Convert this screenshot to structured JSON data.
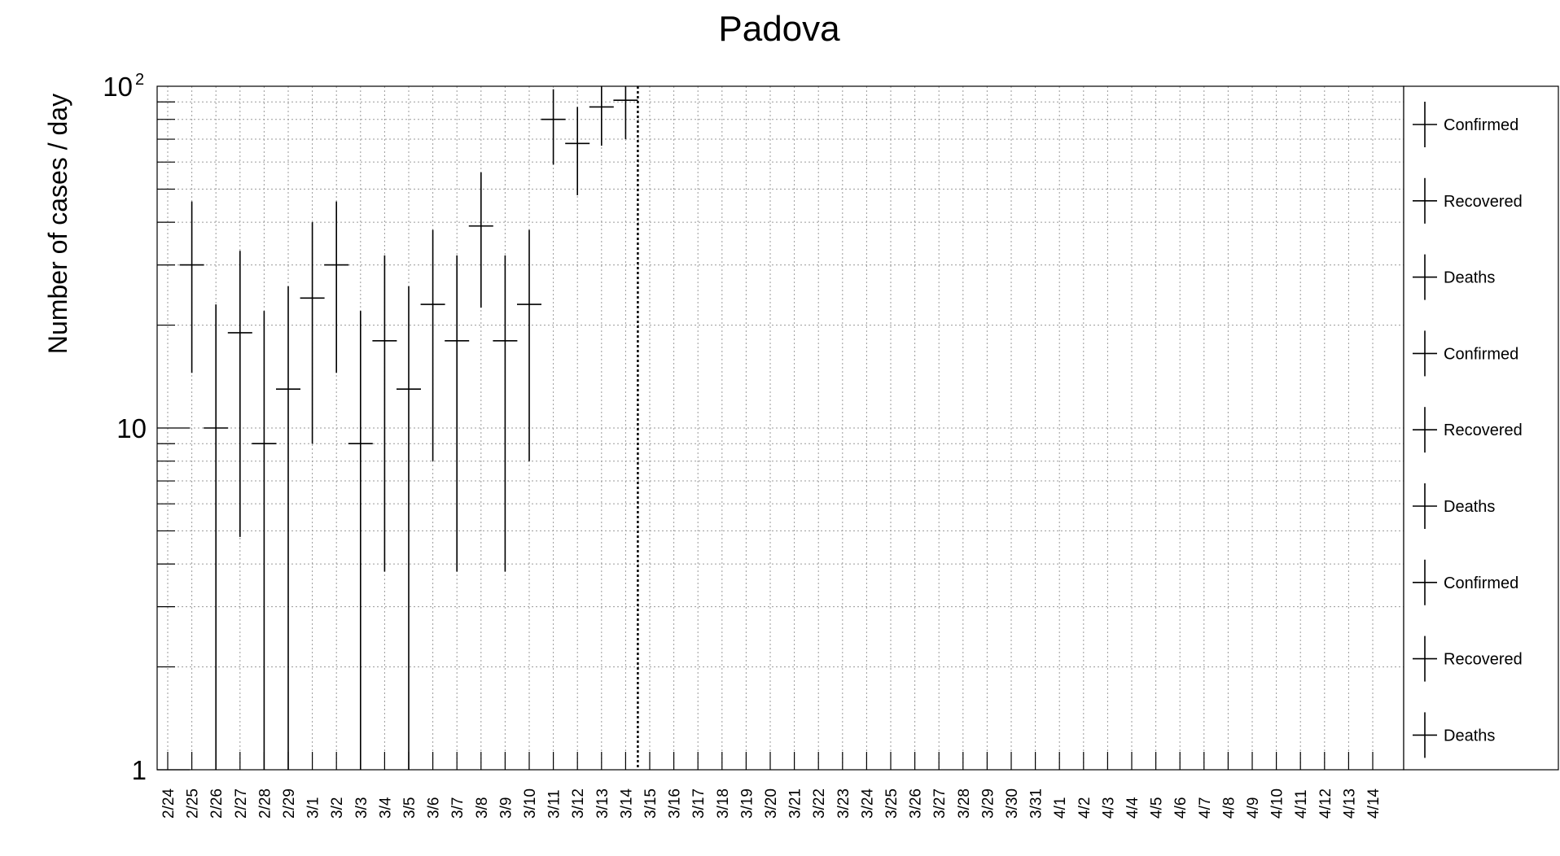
{
  "chart_data": {
    "type": "scatter",
    "title": "Padova",
    "xlabel": "",
    "ylabel": "Number of cases / day",
    "yscale": "log",
    "ylim": [
      1,
      100
    ],
    "ytick_labels": [
      {
        "value": 1,
        "label": "1",
        "sup": ""
      },
      {
        "value": 10,
        "label": "10",
        "sup": ""
      },
      {
        "value": 100,
        "label": "10",
        "sup": "2"
      }
    ],
    "categories": [
      "2/24",
      "2/25",
      "2/26",
      "2/27",
      "2/28",
      "2/29",
      "3/1",
      "3/2",
      "3/3",
      "3/4",
      "3/5",
      "3/6",
      "3/7",
      "3/8",
      "3/9",
      "3/10",
      "3/11",
      "3/12",
      "3/13",
      "3/14",
      "3/15",
      "3/16",
      "3/17",
      "3/18",
      "3/19",
      "3/20",
      "3/21",
      "3/22",
      "3/23",
      "3/24",
      "3/25",
      "3/26",
      "3/27",
      "3/28",
      "3/29",
      "3/30",
      "3/31",
      "4/1",
      "4/2",
      "4/3",
      "4/4",
      "4/5",
      "4/6",
      "4/7",
      "4/8",
      "4/9",
      "4/10",
      "4/11",
      "4/12",
      "4/13",
      "4/14"
    ],
    "grid": true,
    "vertical_marker": {
      "after_category": "3/14",
      "style": "dotted"
    },
    "series": [
      {
        "name": "Confirmed",
        "points": [
          {
            "x": "2/25",
            "y": 30,
            "ylow": 14.5,
            "yhigh": 46
          },
          {
            "x": "2/26",
            "y": 10,
            "ylow": 1,
            "yhigh": 23
          },
          {
            "x": "2/27",
            "y": 19,
            "ylow": 4.8,
            "yhigh": 33
          },
          {
            "x": "2/28",
            "y": 9,
            "ylow": 1,
            "yhigh": 22
          },
          {
            "x": "2/29",
            "y": 13,
            "ylow": 1,
            "yhigh": 26
          },
          {
            "x": "3/1",
            "y": 24,
            "ylow": 9,
            "yhigh": 40
          },
          {
            "x": "3/2",
            "y": 30,
            "ylow": 14.5,
            "yhigh": 46
          },
          {
            "x": "3/3",
            "y": 9,
            "ylow": 1,
            "yhigh": 22
          },
          {
            "x": "3/4",
            "y": 18,
            "ylow": 3.8,
            "yhigh": 32
          },
          {
            "x": "3/5",
            "y": 13,
            "ylow": 1,
            "yhigh": 26
          },
          {
            "x": "3/6",
            "y": 23,
            "ylow": 8,
            "yhigh": 38
          },
          {
            "x": "3/7",
            "y": 18,
            "ylow": 3.8,
            "yhigh": 32
          },
          {
            "x": "3/8",
            "y": 39,
            "ylow": 22.5,
            "yhigh": 56
          },
          {
            "x": "3/9",
            "y": 18,
            "ylow": 3.8,
            "yhigh": 32
          },
          {
            "x": "3/10",
            "y": 23,
            "ylow": 8,
            "yhigh": 38
          },
          {
            "x": "3/11",
            "y": 80,
            "ylow": 59,
            "yhigh": 98
          },
          {
            "x": "3/12",
            "y": 68,
            "ylow": 48,
            "yhigh": 87
          },
          {
            "x": "3/13",
            "y": 87,
            "ylow": 67,
            "yhigh": 100
          },
          {
            "x": "3/14",
            "y": 91,
            "ylow": 70,
            "yhigh": 100
          }
        ]
      },
      {
        "name": "Recovered",
        "points": []
      },
      {
        "name": "Deaths",
        "points": []
      }
    ],
    "legend": {
      "placement": "right",
      "entries": [
        "Confirmed",
        "Recovered",
        "Deaths",
        "Confirmed",
        "Recovered",
        "Deaths",
        "Confirmed",
        "Recovered",
        "Deaths"
      ]
    },
    "colors": {
      "marker": "#000000",
      "grid": "#9a9a9a",
      "axis": "#000000"
    }
  }
}
